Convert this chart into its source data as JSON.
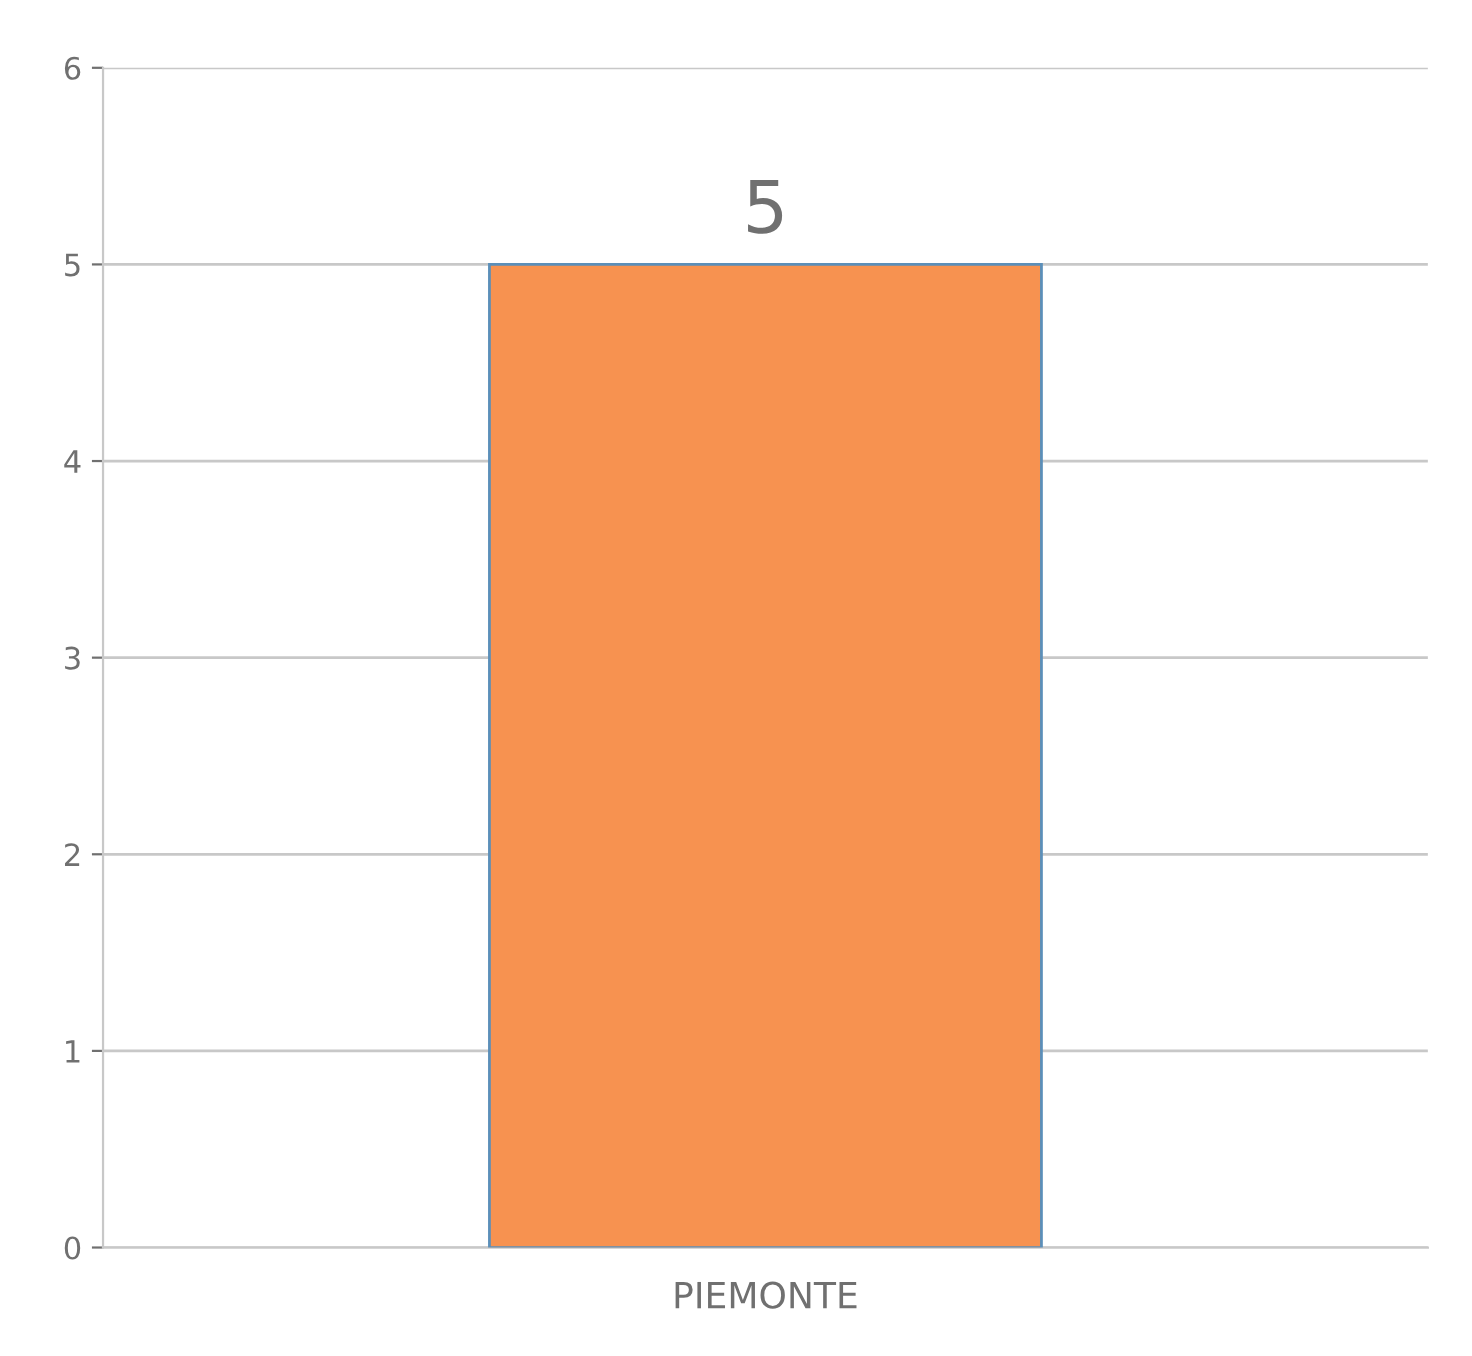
{
  "chart_data": {
    "type": "bar",
    "categories": [
      "PIEMONTE"
    ],
    "values": [
      5
    ],
    "color": "#f79250",
    "ylim": [
      0,
      6
    ],
    "yticks": [
      0,
      1,
      2,
      3,
      4,
      5,
      6
    ],
    "grid": "y",
    "data_labels": true
  }
}
